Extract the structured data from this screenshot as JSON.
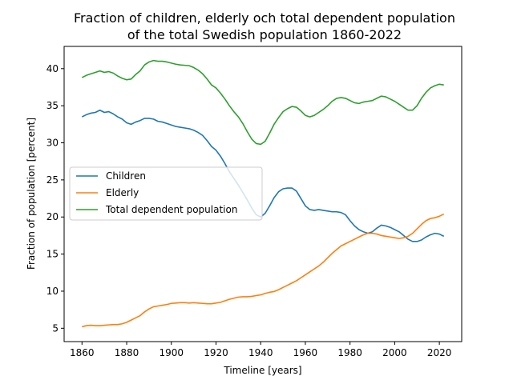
{
  "chart_data": {
    "type": "line",
    "title": "Fraction of children, elderly och total dependent population",
    "subtitle": "of the total Swedish population 1860-2022",
    "xlabel": "Timeline [years]",
    "ylabel": "Fraction of population [percent]",
    "xlim": [
      1852,
      2030
    ],
    "ylim": [
      3.2,
      43.0
    ],
    "xticks": [
      1860,
      1880,
      1900,
      1920,
      1940,
      1960,
      1980,
      2000,
      2020
    ],
    "yticks": [
      5,
      10,
      15,
      20,
      25,
      30,
      35,
      40
    ],
    "grid": false,
    "legend_position": "center-left",
    "series": [
      {
        "name": "Children",
        "color": "#1f77b4",
        "points": [
          [
            1860,
            33.5
          ],
          [
            1862,
            33.8
          ],
          [
            1864,
            34.0
          ],
          [
            1866,
            34.1
          ],
          [
            1868,
            34.4
          ],
          [
            1870,
            34.1
          ],
          [
            1872,
            34.2
          ],
          [
            1874,
            33.9
          ],
          [
            1876,
            33.5
          ],
          [
            1878,
            33.2
          ],
          [
            1880,
            32.7
          ],
          [
            1882,
            32.5
          ],
          [
            1884,
            32.8
          ],
          [
            1886,
            33.0
          ],
          [
            1888,
            33.3
          ],
          [
            1890,
            33.3
          ],
          [
            1892,
            33.2
          ],
          [
            1894,
            32.9
          ],
          [
            1896,
            32.8
          ],
          [
            1898,
            32.6
          ],
          [
            1900,
            32.4
          ],
          [
            1902,
            32.2
          ],
          [
            1904,
            32.1
          ],
          [
            1906,
            32.0
          ],
          [
            1908,
            31.9
          ],
          [
            1910,
            31.7
          ],
          [
            1912,
            31.4
          ],
          [
            1914,
            31.0
          ],
          [
            1916,
            30.3
          ],
          [
            1918,
            29.5
          ],
          [
            1920,
            29.0
          ],
          [
            1922,
            28.2
          ],
          [
            1924,
            27.2
          ],
          [
            1926,
            26.1
          ],
          [
            1928,
            25.2
          ],
          [
            1930,
            24.3
          ],
          [
            1932,
            23.3
          ],
          [
            1934,
            22.3
          ],
          [
            1936,
            21.2
          ],
          [
            1938,
            20.3
          ],
          [
            1940,
            20.0
          ],
          [
            1942,
            20.5
          ],
          [
            1944,
            21.5
          ],
          [
            1946,
            22.6
          ],
          [
            1948,
            23.4
          ],
          [
            1950,
            23.8
          ],
          [
            1952,
            23.9
          ],
          [
            1954,
            23.9
          ],
          [
            1956,
            23.5
          ],
          [
            1958,
            22.5
          ],
          [
            1960,
            21.5
          ],
          [
            1962,
            21.0
          ],
          [
            1964,
            20.9
          ],
          [
            1966,
            21.0
          ],
          [
            1968,
            20.9
          ],
          [
            1970,
            20.8
          ],
          [
            1972,
            20.7
          ],
          [
            1974,
            20.7
          ],
          [
            1976,
            20.6
          ],
          [
            1978,
            20.3
          ],
          [
            1980,
            19.5
          ],
          [
            1982,
            18.8
          ],
          [
            1984,
            18.3
          ],
          [
            1986,
            18.0
          ],
          [
            1988,
            17.8
          ],
          [
            1990,
            18.0
          ],
          [
            1992,
            18.5
          ],
          [
            1994,
            18.9
          ],
          [
            1996,
            18.8
          ],
          [
            1998,
            18.6
          ],
          [
            2000,
            18.3
          ],
          [
            2002,
            18.0
          ],
          [
            2004,
            17.5
          ],
          [
            2006,
            17.0
          ],
          [
            2008,
            16.7
          ],
          [
            2010,
            16.7
          ],
          [
            2012,
            16.9
          ],
          [
            2014,
            17.3
          ],
          [
            2016,
            17.6
          ],
          [
            2018,
            17.8
          ],
          [
            2020,
            17.7
          ],
          [
            2022,
            17.4
          ]
        ]
      },
      {
        "name": "Elderly",
        "color": "#ff7f0e",
        "points": [
          [
            1860,
            5.2
          ],
          [
            1862,
            5.35
          ],
          [
            1864,
            5.4
          ],
          [
            1866,
            5.35
          ],
          [
            1868,
            5.35
          ],
          [
            1870,
            5.4
          ],
          [
            1872,
            5.45
          ],
          [
            1874,
            5.5
          ],
          [
            1876,
            5.5
          ],
          [
            1878,
            5.6
          ],
          [
            1880,
            5.8
          ],
          [
            1882,
            6.1
          ],
          [
            1884,
            6.4
          ],
          [
            1886,
            6.7
          ],
          [
            1888,
            7.2
          ],
          [
            1890,
            7.6
          ],
          [
            1892,
            7.9
          ],
          [
            1894,
            8.0
          ],
          [
            1896,
            8.1
          ],
          [
            1898,
            8.2
          ],
          [
            1900,
            8.35
          ],
          [
            1902,
            8.4
          ],
          [
            1904,
            8.45
          ],
          [
            1906,
            8.45
          ],
          [
            1908,
            8.4
          ],
          [
            1910,
            8.45
          ],
          [
            1912,
            8.4
          ],
          [
            1914,
            8.35
          ],
          [
            1916,
            8.3
          ],
          [
            1918,
            8.3
          ],
          [
            1920,
            8.4
          ],
          [
            1922,
            8.5
          ],
          [
            1924,
            8.7
          ],
          [
            1926,
            8.9
          ],
          [
            1928,
            9.05
          ],
          [
            1930,
            9.2
          ],
          [
            1932,
            9.25
          ],
          [
            1934,
            9.25
          ],
          [
            1936,
            9.3
          ],
          [
            1938,
            9.4
          ],
          [
            1940,
            9.5
          ],
          [
            1942,
            9.7
          ],
          [
            1944,
            9.85
          ],
          [
            1946,
            9.95
          ],
          [
            1948,
            10.2
          ],
          [
            1950,
            10.5
          ],
          [
            1952,
            10.8
          ],
          [
            1954,
            11.1
          ],
          [
            1956,
            11.4
          ],
          [
            1958,
            11.8
          ],
          [
            1960,
            12.2
          ],
          [
            1962,
            12.6
          ],
          [
            1964,
            13.0
          ],
          [
            1966,
            13.4
          ],
          [
            1968,
            13.9
          ],
          [
            1970,
            14.5
          ],
          [
            1972,
            15.1
          ],
          [
            1974,
            15.6
          ],
          [
            1976,
            16.1
          ],
          [
            1978,
            16.4
          ],
          [
            1980,
            16.7
          ],
          [
            1982,
            17.0
          ],
          [
            1984,
            17.3
          ],
          [
            1986,
            17.6
          ],
          [
            1988,
            17.8
          ],
          [
            1990,
            17.8
          ],
          [
            1992,
            17.7
          ],
          [
            1994,
            17.5
          ],
          [
            1996,
            17.4
          ],
          [
            1998,
            17.3
          ],
          [
            2000,
            17.2
          ],
          [
            2002,
            17.1
          ],
          [
            2004,
            17.2
          ],
          [
            2006,
            17.4
          ],
          [
            2008,
            17.8
          ],
          [
            2010,
            18.4
          ],
          [
            2012,
            19.0
          ],
          [
            2014,
            19.5
          ],
          [
            2016,
            19.8
          ],
          [
            2018,
            19.9
          ],
          [
            2020,
            20.1
          ],
          [
            2022,
            20.4
          ]
        ]
      },
      {
        "name": "Total dependent population",
        "color": "#2ca02c",
        "points": [
          [
            1860,
            38.8
          ],
          [
            1862,
            39.1
          ],
          [
            1864,
            39.3
          ],
          [
            1866,
            39.5
          ],
          [
            1868,
            39.7
          ],
          [
            1870,
            39.5
          ],
          [
            1872,
            39.6
          ],
          [
            1874,
            39.4
          ],
          [
            1876,
            39.0
          ],
          [
            1878,
            38.7
          ],
          [
            1880,
            38.5
          ],
          [
            1882,
            38.6
          ],
          [
            1884,
            39.2
          ],
          [
            1886,
            39.7
          ],
          [
            1888,
            40.5
          ],
          [
            1890,
            40.9
          ],
          [
            1892,
            41.1
          ],
          [
            1894,
            41.0
          ],
          [
            1896,
            41.0
          ],
          [
            1898,
            40.9
          ],
          [
            1900,
            40.75
          ],
          [
            1902,
            40.6
          ],
          [
            1904,
            40.5
          ],
          [
            1906,
            40.45
          ],
          [
            1908,
            40.4
          ],
          [
            1910,
            40.15
          ],
          [
            1912,
            39.8
          ],
          [
            1914,
            39.3
          ],
          [
            1916,
            38.6
          ],
          [
            1918,
            37.8
          ],
          [
            1920,
            37.4
          ],
          [
            1922,
            36.7
          ],
          [
            1924,
            35.9
          ],
          [
            1926,
            35.0
          ],
          [
            1928,
            34.2
          ],
          [
            1930,
            33.5
          ],
          [
            1932,
            32.6
          ],
          [
            1934,
            31.5
          ],
          [
            1936,
            30.5
          ],
          [
            1938,
            29.9
          ],
          [
            1940,
            29.8
          ],
          [
            1942,
            30.2
          ],
          [
            1944,
            31.3
          ],
          [
            1946,
            32.5
          ],
          [
            1948,
            33.4
          ],
          [
            1950,
            34.2
          ],
          [
            1952,
            34.6
          ],
          [
            1954,
            34.9
          ],
          [
            1956,
            34.8
          ],
          [
            1958,
            34.3
          ],
          [
            1960,
            33.7
          ],
          [
            1962,
            33.5
          ],
          [
            1964,
            33.7
          ],
          [
            1966,
            34.1
          ],
          [
            1968,
            34.5
          ],
          [
            1970,
            35.0
          ],
          [
            1972,
            35.6
          ],
          [
            1974,
            36.0
          ],
          [
            1976,
            36.1
          ],
          [
            1978,
            36.0
          ],
          [
            1980,
            35.7
          ],
          [
            1982,
            35.4
          ],
          [
            1984,
            35.3
          ],
          [
            1986,
            35.5
          ],
          [
            1988,
            35.6
          ],
          [
            1990,
            35.7
          ],
          [
            1992,
            36.0
          ],
          [
            1994,
            36.3
          ],
          [
            1996,
            36.2
          ],
          [
            1998,
            35.9
          ],
          [
            2000,
            35.6
          ],
          [
            2002,
            35.2
          ],
          [
            2004,
            34.8
          ],
          [
            2006,
            34.4
          ],
          [
            2008,
            34.4
          ],
          [
            2010,
            35.0
          ],
          [
            2012,
            36.0
          ],
          [
            2014,
            36.8
          ],
          [
            2016,
            37.4
          ],
          [
            2018,
            37.7
          ],
          [
            2020,
            37.9
          ],
          [
            2022,
            37.8
          ]
        ]
      }
    ]
  }
}
